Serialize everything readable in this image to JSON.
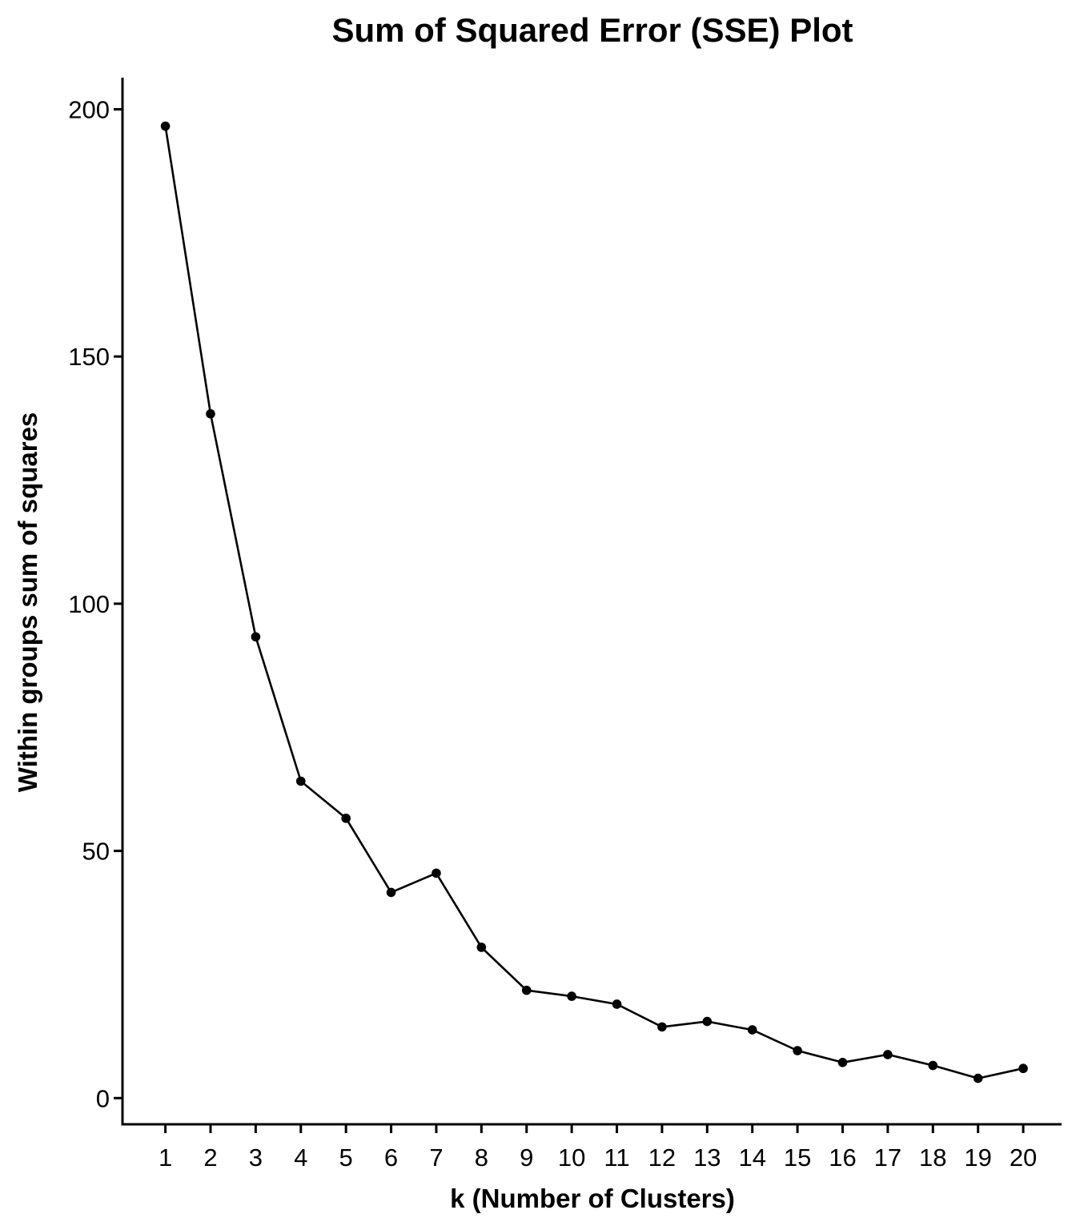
{
  "chart_data": {
    "type": "line",
    "title": "Sum of Squared Error (SSE) Plot",
    "xlabel": "k (Number of Clusters)",
    "ylabel": "Within groups sum of squares",
    "x": [
      1,
      2,
      3,
      4,
      5,
      6,
      7,
      8,
      9,
      10,
      11,
      12,
      13,
      14,
      15,
      16,
      17,
      18,
      19,
      20
    ],
    "x_tick_labels": [
      "1",
      "2",
      "3",
      "4",
      "5",
      "6",
      "7",
      "8",
      "9",
      "10",
      "11",
      "12",
      "13",
      "14",
      "15",
      "16",
      "17",
      "18",
      "19",
      "20"
    ],
    "series": [
      {
        "values": [
          196.6,
          138.4,
          93.3,
          64.1,
          56.6,
          41.6,
          45.5,
          30.5,
          21.8,
          20.6,
          19.0,
          14.4,
          15.5,
          13.8,
          9.6,
          7.2,
          8.8,
          6.6,
          4.0,
          6.0
        ],
        "color": "#000000"
      }
    ],
    "y_ticks": [
      0,
      50,
      100,
      150,
      200
    ],
    "y_tick_labels": [
      "0",
      "50",
      "100",
      "150",
      "200"
    ],
    "xlim": [
      0.05,
      20.85
    ],
    "ylim": [
      -5.3,
      206.4
    ],
    "grid": false,
    "legend": "none"
  }
}
